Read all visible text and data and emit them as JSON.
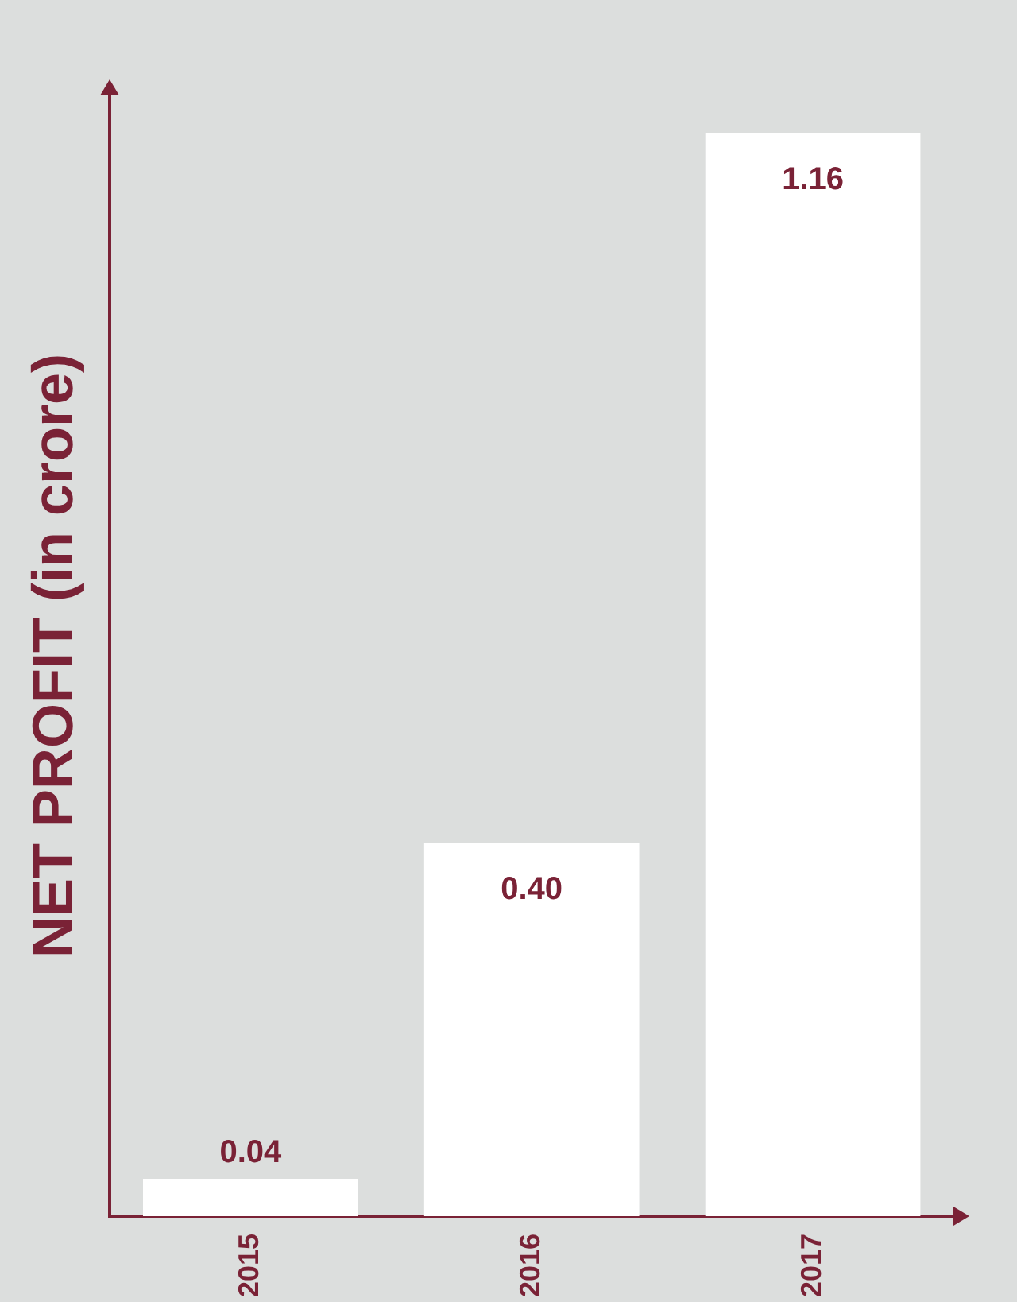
{
  "chart_data": {
    "type": "bar",
    "ylabel": "NET PROFIT (in crore)",
    "categories": [
      "2015",
      "2016",
      "2017"
    ],
    "values": [
      0.04,
      0.4,
      1.16
    ],
    "color": "#ffffff",
    "value_labels": [
      "0.04",
      "0.40",
      "1.16"
    ],
    "grid": false,
    "legend": false
  }
}
